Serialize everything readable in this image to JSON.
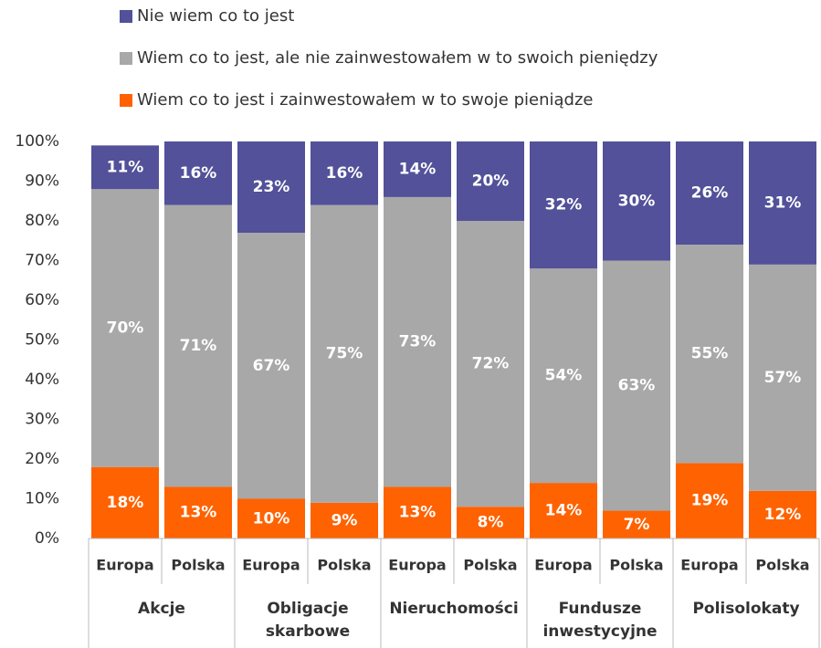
{
  "chart_data": {
    "type": "stacked-bar",
    "categories": [
      "Europa",
      "Polska",
      "Europa",
      "Polska",
      "Europa",
      "Polska",
      "Europa",
      "Polska",
      "Europa",
      "Polska"
    ],
    "groups": [
      "Akcje",
      "Obligacje skarbowe",
      "Nieruchomości",
      "Fundusze inwestycyjne",
      "Polisolokaty"
    ],
    "series": [
      {
        "name": "Wiem co to jest i zainwestowałem w to swoje pieniądze",
        "color": "#ff6200",
        "values": [
          18,
          13,
          10,
          9,
          13,
          8,
          14,
          7,
          19,
          12
        ],
        "value_labels": [
          "18%",
          "13%",
          "10%",
          "9%",
          "13%",
          "8%",
          "14%",
          "7%",
          "19%",
          "12%"
        ]
      },
      {
        "name": "Wiem co to jest, ale nie zainwestowałem w to swoich pieniędzy",
        "color": "#a8a8a8",
        "values": [
          70,
          71,
          67,
          75,
          73,
          72,
          54,
          63,
          55,
          57
        ],
        "value_labels": [
          "70%",
          "71%",
          "67%",
          "75%",
          "73%",
          "72%",
          "54%",
          "63%",
          "55%",
          "57%"
        ]
      },
      {
        "name": "Nie wiem co to jest",
        "color": "#525199",
        "values": [
          11,
          16,
          23,
          16,
          14,
          20,
          32,
          30,
          26,
          31
        ],
        "value_labels": [
          "11%",
          "16%",
          "23%",
          "16%",
          "14%",
          "20%",
          "32%",
          "30%",
          "26%",
          "31%"
        ]
      }
    ],
    "ylim": [
      0,
      100
    ],
    "yticks": [
      {
        "value": 0,
        "label": "0%"
      },
      {
        "value": 10,
        "label": "10%"
      },
      {
        "value": 20,
        "label": "20%"
      },
      {
        "value": 30,
        "label": "30%"
      },
      {
        "value": 40,
        "label": "40%"
      },
      {
        "value": 50,
        "label": "50%"
      },
      {
        "value": 60,
        "label": "60%"
      },
      {
        "value": 70,
        "label": "70%"
      },
      {
        "value": 80,
        "label": "80%"
      },
      {
        "value": 90,
        "label": "90%"
      },
      {
        "value": 100,
        "label": "100%"
      }
    ],
    "legend": "top"
  }
}
